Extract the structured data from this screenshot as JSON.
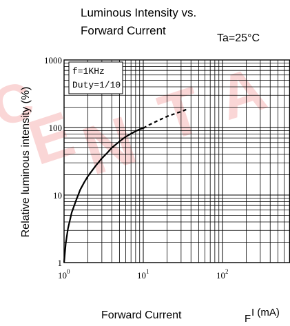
{
  "chart_data": {
    "type": "line",
    "title": [
      "Luminous Intensity vs.",
      "Forward Current"
    ],
    "condition": "Ta=25°C",
    "xlabel": "Forward Current",
    "xunit_prefix": "F",
    "xunit_main": "I (mA)",
    "ylabel": "Relative luminous intensity (%)",
    "xscale": "log",
    "yscale": "log",
    "xlim": [
      1,
      500
    ],
    "ylim": [
      1,
      1000
    ],
    "xticks": [
      {
        "value": 1,
        "base": "10",
        "exp": "0"
      },
      {
        "value": 10,
        "base": "10",
        "exp": "1"
      },
      {
        "value": 100,
        "base": "10",
        "exp": "2"
      }
    ],
    "yticks": [
      {
        "value": 1,
        "label": "1"
      },
      {
        "value": 10,
        "label": "10"
      },
      {
        "value": 100,
        "label": "100"
      },
      {
        "value": 1000,
        "label": "1000"
      }
    ],
    "grid": true,
    "annotation": [
      "f=1KHz",
      "Duty=1/10"
    ],
    "series": [
      {
        "style": "solid",
        "x": [
          1,
          1.05,
          1.12,
          1.25,
          1.4,
          1.6,
          1.8,
          2,
          2.5,
          3,
          3.5,
          4,
          5,
          6,
          7,
          8,
          9,
          10
        ],
        "y": [
          1,
          1.9,
          3.2,
          5.5,
          8,
          12,
          15.5,
          19,
          27,
          35,
          42,
          50,
          62,
          73,
          81,
          88,
          94,
          98
        ]
      },
      {
        "style": "dashed",
        "x": [
          10,
          12,
          15,
          18,
          20,
          25,
          30,
          35
        ],
        "y": [
          98,
          110,
          125,
          138,
          146,
          160,
          172,
          185
        ]
      }
    ],
    "colors": {
      "axis": "#000000",
      "grid": "#000000",
      "curve": "#000000",
      "watermark": "#f08a8a"
    }
  }
}
